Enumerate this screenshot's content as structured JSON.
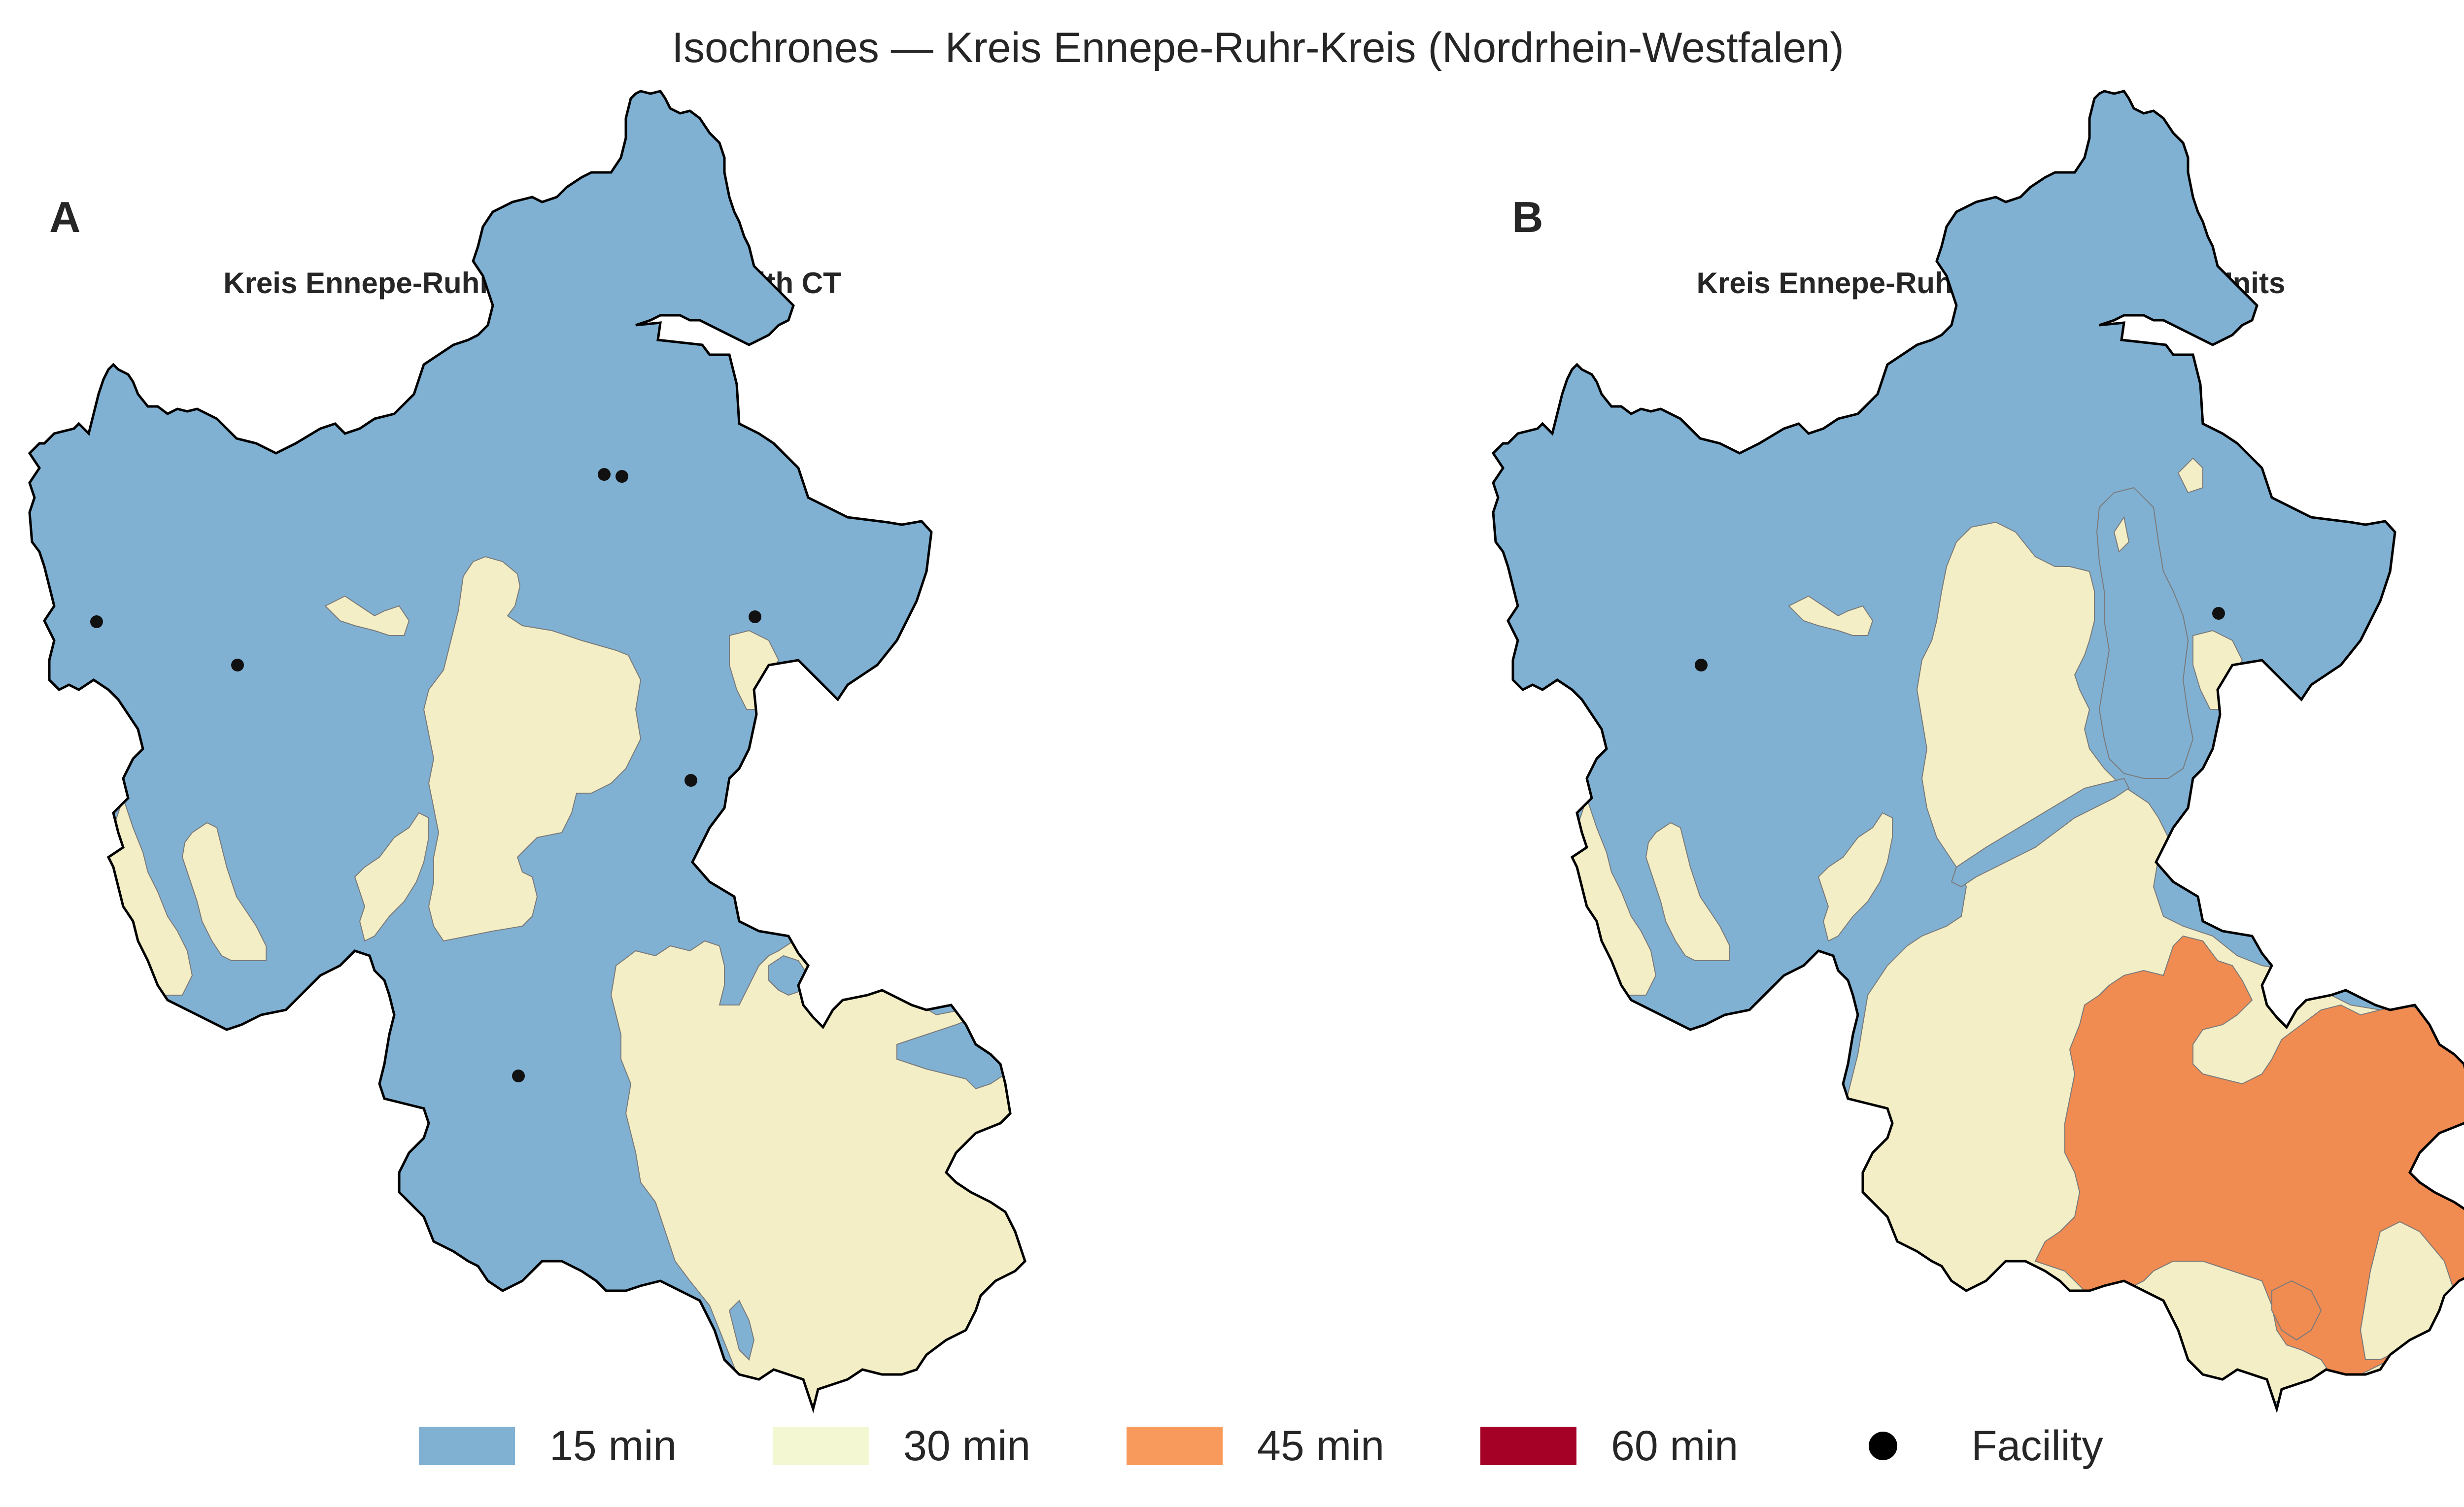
{
  "title": "Isochrones — Kreis Ennepe-Ruhr-Kreis (Nordrhein-Westfalen)",
  "panels": [
    {
      "letter": "A",
      "title": "Kreis Ennepe-Ruhr-Kreis: Hospitals with CT",
      "facility_count": 7
    },
    {
      "letter": "B",
      "title": "Kreis Ennepe-Ruhr-Kreis: All Stroke Units",
      "facility_count": 2
    }
  ],
  "legend": [
    {
      "label": "15 min",
      "color": "#80b1d3"
    },
    {
      "label": "30 min",
      "color": "#f5efc4"
    },
    {
      "label": "45 min",
      "color": "#f4935a"
    },
    {
      "label": "60 min",
      "color": "#a50026"
    },
    {
      "label": "Facility",
      "color": "#000000"
    }
  ],
  "colors": {
    "boundary": "#000000",
    "zone_15": "#80b1d3",
    "zone_30": "#f3eec5",
    "zone_45": "#f08b52"
  }
}
